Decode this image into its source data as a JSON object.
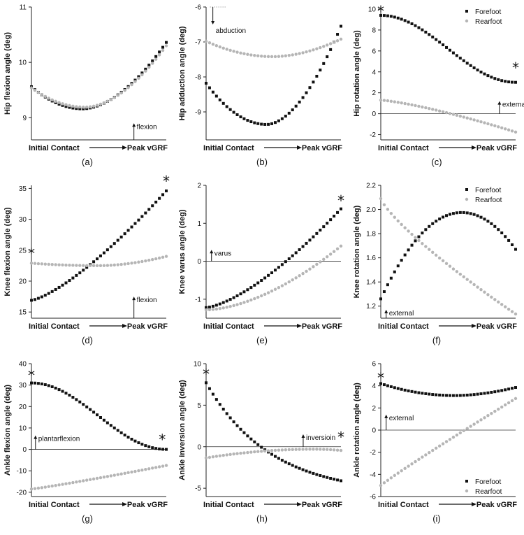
{
  "colors": {
    "forefoot": "#111111",
    "rearfoot": "#b5b5b5",
    "axis": "#222222"
  },
  "x_axis": {
    "start": "Initial Contact",
    "end": "Peak vGRF"
  },
  "chart_data": [
    {
      "id": "a",
      "label": "(a)",
      "type": "scatter",
      "ylabel": "Hip flexion angle (deg)",
      "ylim": [
        8.6,
        11.0
      ],
      "yticks": [
        "9",
        "10",
        "11"
      ],
      "ytick_values": [
        9,
        10,
        11
      ],
      "series": [
        {
          "key": "forefoot",
          "shape": "square",
          "start": 9.56,
          "min_t": 0.38,
          "min": 9.16,
          "end": 10.36
        },
        {
          "key": "rearfoot",
          "shape": "circle",
          "start": 9.54,
          "min_t": 0.4,
          "min": 9.19,
          "end": 10.3
        }
      ],
      "annotation": {
        "text": "flexion",
        "at_t": 0.76,
        "from": 8.6,
        "to": 8.9
      }
    },
    {
      "id": "b",
      "label": "(b)",
      "type": "scatter",
      "ylabel": "Hip adduction angle (deg)",
      "ylim": [
        -9.8,
        -6.0
      ],
      "yticks": [
        "-6",
        "-7",
        "-8",
        "-9"
      ],
      "ytick_values": [
        -6,
        -7,
        -8,
        -9
      ],
      "series": [
        {
          "key": "forefoot",
          "shape": "square",
          "start": -8.18,
          "min_t": 0.45,
          "min": -9.36,
          "end": -6.55
        },
        {
          "key": "rearfoot",
          "shape": "circle",
          "start": -6.98,
          "min_t": 0.5,
          "min": -7.42,
          "end": -6.92
        }
      ],
      "annotation": {
        "text": "abduction",
        "at_t": 0.05,
        "from": -6.0,
        "to": -6.5,
        "dotted_to": -6.0
      }
    },
    {
      "id": "c",
      "label": "(c)",
      "type": "scatter",
      "ylabel": "Hip rotation angle (deg)",
      "ylim": [
        -2.5,
        10.2
      ],
      "yticks": [
        "10",
        "8",
        "6",
        "4",
        "2",
        "0",
        "-2"
      ],
      "ytick_values": [
        10,
        8,
        6,
        4,
        2,
        0,
        -2
      ],
      "zero_line": true,
      "series": [
        {
          "key": "forefoot",
          "shape": "square",
          "start": 9.4,
          "end": 3.0,
          "cosine": true
        },
        {
          "key": "rearfoot",
          "shape": "circle",
          "start": 1.3,
          "end": -1.75,
          "power": 1.3
        }
      ],
      "annotation": {
        "text": "external",
        "at_t": 0.88,
        "from": 0,
        "to": 1.2
      },
      "stars": [
        {
          "t": 0.0,
          "y": 10.0
        },
        {
          "t": 1.0,
          "y": 4.6
        }
      ],
      "legend": true
    },
    {
      "id": "d",
      "label": "(d)",
      "type": "scatter",
      "ylabel": "Knee flexion angle (deg)",
      "ylim": [
        14.0,
        35.5
      ],
      "yticks": [
        "35",
        "30",
        "25",
        "20",
        "15"
      ],
      "ytick_values": [
        35,
        30,
        25,
        20,
        15
      ],
      "series": [
        {
          "key": "forefoot",
          "shape": "square",
          "start": 16.9,
          "end": 34.6,
          "power": 1.35
        },
        {
          "key": "rearfoot",
          "shape": "circle",
          "start": 22.9,
          "min_t": 0.5,
          "min": 22.5,
          "end": 24.0
        }
      ],
      "annotation": {
        "text": "flexion",
        "at_t": 0.76,
        "from": 14.0,
        "to": 17.5
      },
      "stars": [
        {
          "t": 0.0,
          "y": 24.8
        },
        {
          "t": 1.0,
          "y": 36.5
        }
      ]
    },
    {
      "id": "e",
      "label": "(e)",
      "type": "scatter",
      "ylabel": "Knee varus angle (deg)",
      "ylim": [
        -1.5,
        2.0
      ],
      "yticks": [
        "2",
        "1",
        "0",
        "-1"
      ],
      "ytick_values": [
        2,
        1,
        0,
        -1
      ],
      "zero_line": true,
      "series": [
        {
          "key": "forefoot",
          "shape": "square",
          "start": -1.22,
          "end": 1.38,
          "power": 1.45
        },
        {
          "key": "rearfoot",
          "shape": "circle",
          "start": -1.28,
          "end": 0.4,
          "power": 1.7
        }
      ],
      "annotation": {
        "text": "varus",
        "at_t": 0.04,
        "from": 0,
        "to": 0.3
      },
      "stars": [
        {
          "t": 1.0,
          "y": 1.65
        }
      ]
    },
    {
      "id": "f",
      "label": "(f)",
      "type": "scatter",
      "ylabel": "Knee rotation angle (deg)",
      "ylim": [
        1.1,
        2.2
      ],
      "yticks": [
        "2.2",
        "2.0",
        "1.8",
        "1.6",
        "1.4",
        "1.2"
      ],
      "ytick_values": [
        2.2,
        2.0,
        1.8,
        1.6,
        1.4,
        1.2
      ],
      "series": [
        {
          "key": "forefoot",
          "shape": "square",
          "start": 1.26,
          "peak_t": 0.6,
          "peak": 1.975,
          "end": 1.67
        },
        {
          "key": "rearfoot",
          "shape": "circle",
          "start": 2.09,
          "end": 1.135,
          "power": 0.8
        }
      ],
      "annotation": {
        "text": "external",
        "at_t": 0.04,
        "from": 1.1,
        "to": 1.17
      },
      "legend": true
    },
    {
      "id": "g",
      "label": "(g)",
      "type": "scatter",
      "ylabel": "Ankle flexion angle (deg)",
      "ylim": [
        -22.0,
        40.0
      ],
      "yticks": [
        "40",
        "30",
        "20",
        "10",
        "0",
        "-10",
        "-20"
      ],
      "ytick_values": [
        40,
        30,
        20,
        10,
        0,
        -10,
        -20
      ],
      "zero_line": true,
      "series": [
        {
          "key": "forefoot",
          "shape": "square",
          "start": 31.0,
          "end": 0.0,
          "cosine": true
        },
        {
          "key": "rearfoot",
          "shape": "circle",
          "start": -18.5,
          "end": -7.5,
          "power": 1.1
        }
      ],
      "annotation": {
        "text": "plantarflexion",
        "at_t": 0.03,
        "from": 0,
        "to": 6.5
      },
      "stars": [
        {
          "t": 0.0,
          "y": 35.5
        },
        {
          "t": 0.97,
          "y": 5.5
        }
      ]
    },
    {
      "id": "h",
      "label": "(h)",
      "type": "scatter",
      "ylabel": "Ankle inversion angle (deg)",
      "ylim": [
        -6.0,
        10.0
      ],
      "yticks": [
        "10",
        "5",
        "0",
        "-5"
      ],
      "ytick_values": [
        10,
        5,
        0,
        -5
      ],
      "zero_line": true,
      "series": [
        {
          "key": "forefoot",
          "shape": "square",
          "start": 7.7,
          "end": -4.1,
          "decay": 2.1
        },
        {
          "key": "rearfoot",
          "shape": "circle",
          "start": -1.35,
          "peak_t": 0.8,
          "peak": -0.3,
          "end": -0.45
        }
      ],
      "annotation": {
        "text": "inversioin",
        "at_t": 0.72,
        "from": 0,
        "to": 1.5
      },
      "stars": [
        {
          "t": 0.0,
          "y": 9.0
        },
        {
          "t": 1.0,
          "y": 1.4
        }
      ]
    },
    {
      "id": "i",
      "label": "(i)",
      "type": "scatter",
      "ylabel": "Ankle rotation angle (deg)",
      "ylim": [
        -6.0,
        6.0
      ],
      "yticks": [
        "6",
        "4",
        "2",
        "0",
        "-2",
        "-4",
        "-6"
      ],
      "ytick_values": [
        6,
        4,
        2,
        0,
        -2,
        -4,
        -6
      ],
      "zero_line": true,
      "series": [
        {
          "key": "forefoot",
          "shape": "square",
          "start": 4.2,
          "min_t": 0.55,
          "min": 3.12,
          "end": 3.85
        },
        {
          "key": "rearfoot",
          "shape": "circle",
          "start": -5.0,
          "end": 2.85,
          "power": 0.95
        }
      ],
      "annotation": {
        "text": "external",
        "at_t": 0.04,
        "from": 0,
        "to": 1.4
      },
      "stars": [
        {
          "t": 0.0,
          "y": 4.9
        }
      ],
      "legend": true,
      "legend_position": "bottom-right"
    }
  ],
  "legend": {
    "items": [
      {
        "key": "forefoot",
        "label": "Forefoot"
      },
      {
        "key": "rearfoot",
        "label": "Rearfoot"
      }
    ]
  },
  "star_symbol": "*"
}
